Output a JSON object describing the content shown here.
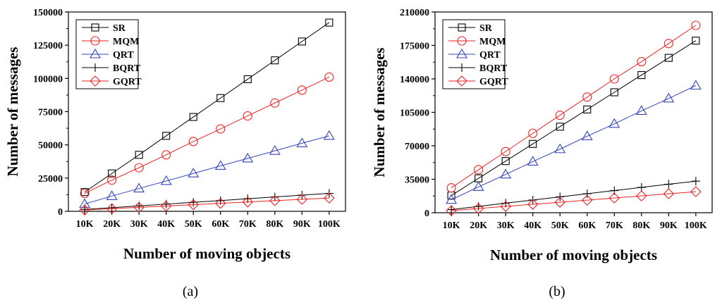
{
  "chart_data": [
    {
      "type": "line",
      "caption": "(a)",
      "xlabel": "Number of moving objects",
      "ylabel": "Number of messages",
      "categories": [
        "10K",
        "20K",
        "30K",
        "40K",
        "50K",
        "60K",
        "70K",
        "80K",
        "90K",
        "100K"
      ],
      "ylim": [
        0,
        150000
      ],
      "yticks": [
        0,
        25000,
        50000,
        75000,
        100000,
        125000,
        150000
      ],
      "legend_position": "top-left",
      "series": [
        {
          "name": "SR",
          "color": "#000000",
          "marker": "square",
          "values": [
            14500,
            28500,
            42500,
            56800,
            71000,
            85200,
            99400,
            113600,
            127800,
            142000
          ]
        },
        {
          "name": "MQM",
          "color": "#ee2222",
          "marker": "circle",
          "values": [
            13500,
            23500,
            32800,
            42500,
            52500,
            62000,
            71800,
            81500,
            91200,
            101000
          ]
        },
        {
          "name": "QRT",
          "color": "#3344bb",
          "marker": "triangle",
          "values": [
            5500,
            11500,
            17200,
            22800,
            28500,
            34200,
            39800,
            45500,
            51200,
            56800
          ]
        },
        {
          "name": "BQRT",
          "color": "#000000",
          "marker": "plus",
          "values": [
            1400,
            2700,
            4100,
            5400,
            6800,
            8100,
            9500,
            10800,
            12200,
            13500
          ]
        },
        {
          "name": "GQRT",
          "color": "#ee2222",
          "marker": "diamond",
          "values": [
            1000,
            2000,
            3000,
            4000,
            5000,
            6000,
            7000,
            8000,
            9000,
            10000
          ]
        }
      ]
    },
    {
      "type": "line",
      "caption": "(b)",
      "xlabel": "Number of moving objects",
      "ylabel": "Number of messages",
      "categories": [
        "10K",
        "20K",
        "30K",
        "40K",
        "50K",
        "60K",
        "70K",
        "80K",
        "90K",
        "100K"
      ],
      "ylim": [
        0,
        210000
      ],
      "yticks": [
        0,
        35000,
        70000,
        105000,
        140000,
        175000,
        210000
      ],
      "legend_position": "top-left",
      "series": [
        {
          "name": "SR",
          "color": "#000000",
          "marker": "square",
          "values": [
            18000,
            36000,
            54000,
            72000,
            90000,
            108000,
            126000,
            144000,
            162000,
            180000
          ]
        },
        {
          "name": "MQM",
          "color": "#ee2222",
          "marker": "circle",
          "values": [
            26000,
            45000,
            64000,
            83000,
            102000,
            121000,
            140000,
            158000,
            177000,
            196000
          ]
        },
        {
          "name": "QRT",
          "color": "#3344bb",
          "marker": "triangle",
          "values": [
            13500,
            27000,
            40000,
            53500,
            66500,
            80000,
            93000,
            106500,
            119500,
            133000
          ]
        },
        {
          "name": "BQRT",
          "color": "#000000",
          "marker": "plus",
          "values": [
            3300,
            6600,
            10000,
            13300,
            16600,
            19900,
            23200,
            26500,
            29800,
            33000
          ]
        },
        {
          "name": "GQRT",
          "color": "#ee2222",
          "marker": "diamond",
          "values": [
            2200,
            4400,
            6600,
            8800,
            11000,
            13200,
            15400,
            17600,
            19800,
            22000
          ]
        }
      ]
    }
  ]
}
